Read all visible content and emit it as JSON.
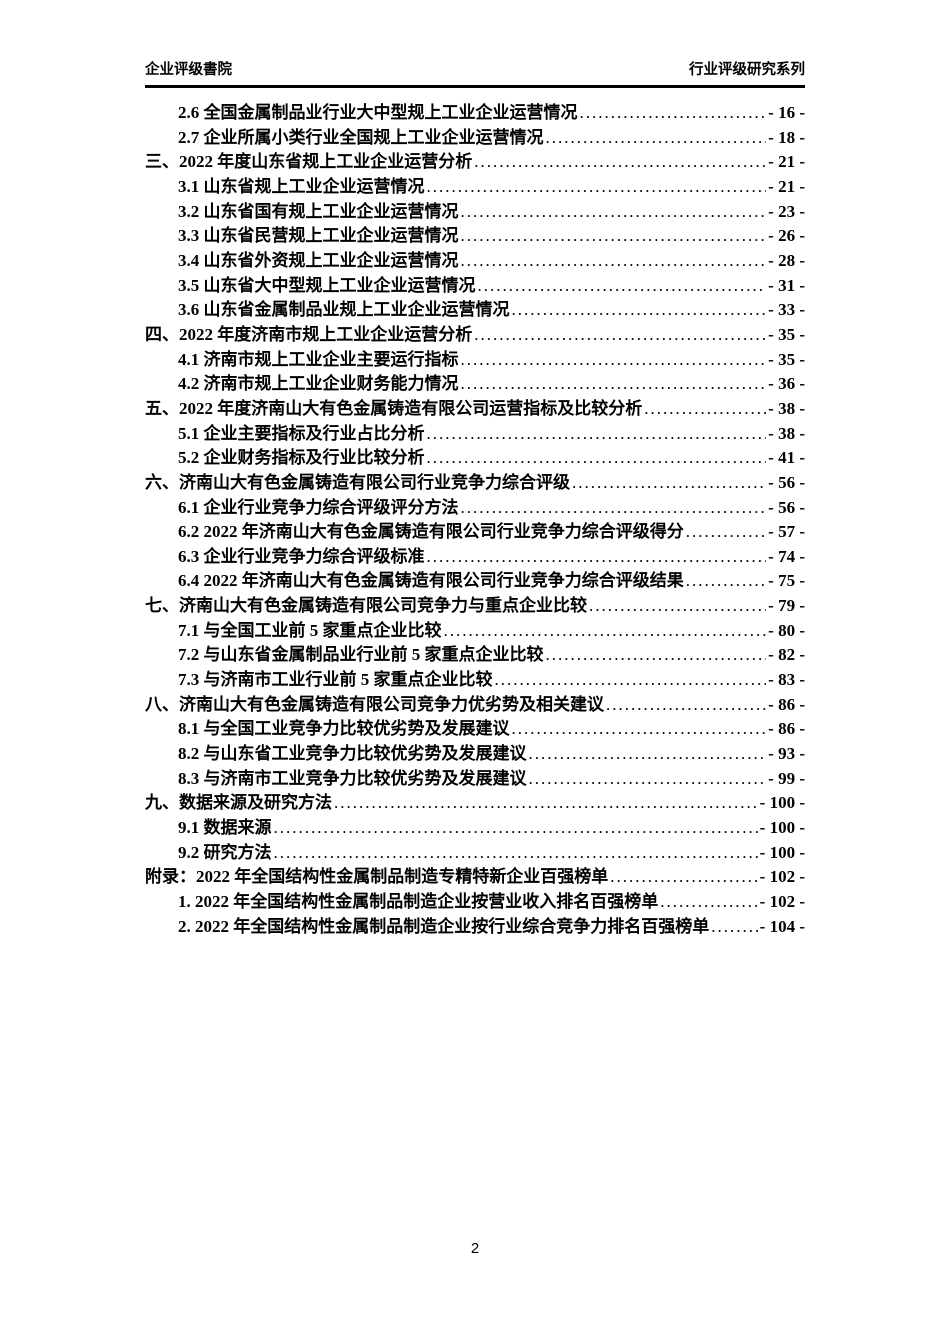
{
  "header": {
    "left": "企业评级書院",
    "right": "行业评级研究系列"
  },
  "toc": {
    "entries": [
      {
        "level": 2,
        "text": "2.6 全国金属制品业行业大中型规上工业企业运营情况",
        "page": "- 16 -"
      },
      {
        "level": 2,
        "text": "2.7 企业所属小类行业全国规上工业企业运营情况",
        "page": "- 18 -"
      },
      {
        "level": 1,
        "text": "三、2022 年度山东省规上工业企业运营分析",
        "page": "- 21 -"
      },
      {
        "level": 2,
        "text": "3.1 山东省规上工业企业运营情况",
        "page": "- 21 -"
      },
      {
        "level": 2,
        "text": "3.2 山东省国有规上工业企业运营情况",
        "page": "- 23 -"
      },
      {
        "level": 2,
        "text": "3.3 山东省民营规上工业企业运营情况",
        "page": "- 26 -"
      },
      {
        "level": 2,
        "text": "3.4 山东省外资规上工业企业运营情况",
        "page": "- 28 -"
      },
      {
        "level": 2,
        "text": "3.5 山东省大中型规上工业企业运营情况",
        "page": "- 31 -"
      },
      {
        "level": 2,
        "text": "3.6 山东省金属制品业规上工业企业运营情况",
        "page": "- 33 -"
      },
      {
        "level": 1,
        "text": "四、2022 年度济南市规上工业企业运营分析",
        "page": "- 35 -"
      },
      {
        "level": 2,
        "text": "4.1 济南市规上工业企业主要运行指标",
        "page": "- 35 -"
      },
      {
        "level": 2,
        "text": "4.2 济南市规上工业企业财务能力情况",
        "page": "- 36 -"
      },
      {
        "level": 1,
        "text": "五、2022 年度济南山大有色金属铸造有限公司运营指标及比较分析",
        "page": "- 38 -"
      },
      {
        "level": 2,
        "text": "5.1 企业主要指标及行业占比分析",
        "page": "- 38 -"
      },
      {
        "level": 2,
        "text": "5.2 企业财务指标及行业比较分析",
        "page": "- 41 -"
      },
      {
        "level": 1,
        "text": "六、济南山大有色金属铸造有限公司行业竞争力综合评级",
        "page": "- 56 -"
      },
      {
        "level": 2,
        "text": "6.1 企业行业竞争力综合评级评分方法",
        "page": "- 56 -"
      },
      {
        "level": 2,
        "text": "6.2 2022 年济南山大有色金属铸造有限公司行业竞争力综合评级得分",
        "page": "- 57 -"
      },
      {
        "level": 2,
        "text": "6.3 企业行业竞争力综合评级标准",
        "page": "- 74 -"
      },
      {
        "level": 2,
        "text": "6.4 2022 年济南山大有色金属铸造有限公司行业竞争力综合评级结果",
        "page": "- 75 -"
      },
      {
        "level": 1,
        "text": "七、济南山大有色金属铸造有限公司竞争力与重点企业比较",
        "page": "- 79 -"
      },
      {
        "level": 2,
        "text": "7.1 与全国工业前 5 家重点企业比较",
        "page": "- 80 -"
      },
      {
        "level": 2,
        "text": "7.2 与山东省金属制品业行业前 5 家重点企业比较",
        "page": "- 82 -"
      },
      {
        "level": 2,
        "text": "7.3 与济南市工业行业前 5 家重点企业比较",
        "page": "- 83 -"
      },
      {
        "level": 1,
        "text": "八、济南山大有色金属铸造有限公司竞争力优劣势及相关建议",
        "page": "- 86 -"
      },
      {
        "level": 2,
        "text": "8.1 与全国工业竞争力比较优劣势及发展建议",
        "page": "- 86 -"
      },
      {
        "level": 2,
        "text": "8.2 与山东省工业竞争力比较优劣势及发展建议",
        "page": "- 93 -"
      },
      {
        "level": 2,
        "text": "8.3 与济南市工业竞争力比较优劣势及发展建议",
        "page": "- 99 -"
      },
      {
        "level": 1,
        "text": "九、数据来源及研究方法",
        "page": "- 100 -"
      },
      {
        "level": 2,
        "text": "9.1 数据来源",
        "page": "- 100 -"
      },
      {
        "level": 2,
        "text": "9.2 研究方法",
        "page": "- 100 -"
      },
      {
        "level": 1,
        "text": "附录：2022 年全国结构性金属制品制造专精特新企业百强榜单",
        "page": "- 102 -"
      },
      {
        "level": 2,
        "text": "1. 2022 年全国结构性金属制品制造企业按营业收入排名百强榜单",
        "page": "- 102 -"
      },
      {
        "level": 2,
        "text": "2. 2022 年全国结构性金属制品制造企业按行业综合竞争力排名百强榜单",
        "page": "- 104 -"
      }
    ]
  },
  "footer": {
    "page_number": "2"
  }
}
